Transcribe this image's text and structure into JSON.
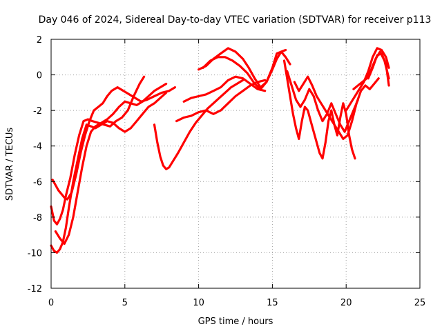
{
  "chart_data": {
    "type": "scatter",
    "title": "Day 046 of 2024, Sidereal Day-to-day VTEC variation (SDTVAR) for receiver p113",
    "xlabel": "GPS time / hours",
    "ylabel": "SDTVAR / TECUs",
    "xlim": [
      0,
      25
    ],
    "ylim": [
      -12,
      2
    ],
    "xticks": [
      "0",
      "5",
      "10",
      "15",
      "20",
      "25"
    ],
    "yticks": [
      "2",
      "0",
      "-2",
      "-4",
      "-6",
      "-8",
      "-10",
      "-12"
    ],
    "grid": true,
    "marker_color": "#ff0000",
    "series": [
      {
        "x": [
          0.0,
          0.2,
          0.4,
          0.6,
          0.8,
          1.0,
          1.3,
          1.6,
          1.9,
          2.2,
          2.5,
          2.8,
          3.2,
          3.6,
          4.0,
          4.4,
          4.8,
          5.2,
          5.6,
          6.0,
          6.3
        ],
        "y": [
          -7.4,
          -8.2,
          -8.4,
          -8.1,
          -7.6,
          -6.8,
          -5.8,
          -4.5,
          -3.4,
          -2.6,
          -2.5,
          -2.6,
          -2.7,
          -2.8,
          -2.9,
          -2.6,
          -2.4,
          -2.0,
          -1.2,
          -0.5,
          -0.1
        ]
      },
      {
        "x": [
          0.0,
          0.2,
          0.4,
          0.6,
          0.8,
          1.0,
          1.2,
          1.5,
          1.8,
          2.1,
          2.4,
          2.7,
          3.0,
          3.4,
          3.8,
          4.2,
          4.6,
          5.0,
          5.4,
          5.8,
          6.2,
          6.6,
          7.0,
          7.4,
          7.8
        ],
        "y": [
          -9.6,
          -9.9,
          -10.0,
          -9.8,
          -9.4,
          -8.6,
          -7.5,
          -6.0,
          -4.8,
          -3.6,
          -2.8,
          -2.9,
          -3.0,
          -2.8,
          -2.6,
          -2.7,
          -3.0,
          -3.2,
          -3.0,
          -2.6,
          -2.2,
          -1.8,
          -1.6,
          -1.3,
          -1.0
        ]
      },
      {
        "x": [
          0.1,
          0.3,
          0.5,
          0.7,
          0.9,
          1.1,
          1.4,
          1.7,
          2.0,
          2.3,
          2.6,
          2.9,
          3.2,
          3.5,
          3.8,
          4.1,
          4.5,
          4.9,
          5.3,
          5.7,
          6.1,
          6.5,
          7.0,
          7.5,
          8.0,
          8.4
        ],
        "y": [
          -5.9,
          -6.2,
          -6.5,
          -6.7,
          -6.9,
          -7.0,
          -6.6,
          -5.6,
          -4.4,
          -3.4,
          -2.6,
          -2.0,
          -1.8,
          -1.6,
          -1.2,
          -0.9,
          -0.7,
          -0.9,
          -1.1,
          -1.3,
          -1.5,
          -1.4,
          -1.2,
          -1.0,
          -0.9,
          -0.7
        ]
      },
      {
        "x": [
          0.3,
          0.6,
          0.9,
          1.2,
          1.5,
          1.8,
          2.1,
          2.4,
          2.7,
          3.0,
          3.4,
          3.8,
          4.2,
          4.6,
          5.0,
          5.4,
          5.8,
          6.2,
          6.6,
          7.0,
          7.4,
          7.8
        ],
        "y": [
          -8.8,
          -9.2,
          -9.5,
          -9.0,
          -8.0,
          -6.6,
          -5.2,
          -4.0,
          -3.2,
          -2.9,
          -2.7,
          -2.5,
          -2.2,
          -1.8,
          -1.5,
          -1.6,
          -1.7,
          -1.5,
          -1.2,
          -0.9,
          -0.7,
          -0.5
        ]
      },
      {
        "x": [
          7.0,
          7.2,
          7.4,
          7.6,
          7.8,
          8.0,
          8.3,
          8.6,
          9.0,
          9.4,
          9.8,
          10.2,
          10.6,
          11.0,
          11.4,
          11.8,
          12.2,
          12.6,
          13.0
        ],
        "y": [
          -2.8,
          -3.8,
          -4.6,
          -5.1,
          -5.3,
          -5.2,
          -4.8,
          -4.4,
          -3.8,
          -3.2,
          -2.7,
          -2.3,
          -1.9,
          -1.6,
          -1.3,
          -1.0,
          -0.7,
          -0.5,
          -0.3
        ]
      },
      {
        "x": [
          8.5,
          9.0,
          9.5,
          10.0,
          10.5,
          11.0,
          11.5,
          12.0,
          12.5,
          13.0,
          13.5,
          14.0,
          14.5
        ],
        "y": [
          -2.6,
          -2.4,
          -2.3,
          -2.1,
          -2.0,
          -2.2,
          -2.0,
          -1.6,
          -1.2,
          -0.9,
          -0.6,
          -0.4,
          -0.3
        ]
      },
      {
        "x": [
          9.0,
          9.5,
          10.0,
          10.5,
          11.0,
          11.5,
          12.0,
          12.5,
          13.0,
          13.5,
          14.0,
          14.5
        ],
        "y": [
          -1.5,
          -1.3,
          -1.2,
          -1.1,
          -0.9,
          -0.7,
          -0.3,
          -0.1,
          -0.2,
          -0.5,
          -0.8,
          -0.9
        ]
      },
      {
        "x": [
          10.0,
          10.5,
          11.0,
          11.5,
          12.0,
          12.5,
          13.0,
          13.4,
          13.8,
          14.2,
          14.6,
          15.0,
          15.3,
          15.6,
          15.9,
          16.2
        ],
        "y": [
          0.3,
          0.5,
          0.9,
          1.2,
          1.5,
          1.3,
          0.9,
          0.4,
          -0.2,
          -0.7,
          -0.4,
          0.4,
          1.2,
          1.3,
          1.0,
          0.6
        ]
      },
      {
        "x": [
          10.3,
          10.8,
          11.3,
          11.8,
          12.3,
          12.8,
          13.3,
          13.8,
          14.2,
          14.6,
          15.0,
          15.3,
          15.6,
          15.9
        ],
        "y": [
          0.4,
          0.8,
          1.0,
          1.0,
          0.8,
          0.5,
          0.1,
          -0.5,
          -0.8,
          -0.4,
          0.3,
          0.9,
          1.3,
          1.4
        ]
      },
      {
        "x": [
          15.8,
          16.0,
          16.2,
          16.4,
          16.6,
          16.8,
          17.0,
          17.2,
          17.4,
          17.6,
          17.8,
          18.0,
          18.2,
          18.4,
          18.6,
          18.8,
          19.0,
          19.2,
          19.4,
          19.6,
          19.8,
          20.0,
          20.2,
          20.4,
          20.6
        ],
        "y": [
          0.8,
          -0.2,
          -1.2,
          -2.2,
          -3.0,
          -3.6,
          -2.6,
          -1.8,
          -2.0,
          -2.6,
          -3.2,
          -3.8,
          -4.4,
          -4.7,
          -3.8,
          -2.6,
          -2.0,
          -2.8,
          -3.4,
          -2.4,
          -1.6,
          -2.2,
          -3.4,
          -4.2,
          -4.7
        ]
      },
      {
        "x": [
          16.0,
          16.3,
          16.6,
          16.9,
          17.2,
          17.5,
          17.8,
          18.1,
          18.4,
          18.7,
          19.0,
          19.3,
          19.6,
          19.9,
          20.2,
          20.5,
          20.8
        ],
        "y": [
          0.2,
          -0.6,
          -1.4,
          -1.8,
          -1.4,
          -0.8,
          -1.2,
          -2.0,
          -2.6,
          -2.2,
          -1.6,
          -2.2,
          -2.8,
          -3.2,
          -2.6,
          -2.0,
          -1.4
        ]
      },
      {
        "x": [
          16.5,
          16.8,
          17.1,
          17.4,
          17.7,
          18.0,
          18.3,
          18.6,
          18.9,
          19.2,
          19.5,
          19.8,
          20.1,
          20.4,
          20.7,
          21.0,
          21.3,
          21.6,
          21.9,
          22.2
        ],
        "y": [
          -0.4,
          -0.9,
          -0.5,
          -0.1,
          -0.6,
          -1.2,
          -1.6,
          -2.0,
          -2.4,
          -2.8,
          -3.2,
          -3.6,
          -3.4,
          -2.6,
          -1.6,
          -0.9,
          -0.6,
          -0.8,
          -0.5,
          -0.2
        ]
      },
      {
        "x": [
          20.0,
          20.3,
          20.6,
          20.9,
          21.2,
          21.5,
          21.8,
          22.1,
          22.4,
          22.7,
          22.9
        ],
        "y": [
          -2.0,
          -1.6,
          -1.2,
          -0.8,
          -0.4,
          0.2,
          1.0,
          1.5,
          1.4,
          1.0,
          0.4
        ]
      },
      {
        "x": [
          20.5,
          20.8,
          21.1,
          21.4,
          21.7,
          22.0,
          22.3,
          22.6,
          22.9
        ],
        "y": [
          -0.8,
          -0.6,
          -0.4,
          -0.2,
          0.3,
          0.9,
          1.3,
          0.8,
          -0.2
        ]
      },
      {
        "x": [
          21.5,
          21.8,
          22.1,
          22.4,
          22.7,
          22.9
        ],
        "y": [
          -0.2,
          0.4,
          1.1,
          1.2,
          0.6,
          -0.6
        ]
      }
    ]
  }
}
